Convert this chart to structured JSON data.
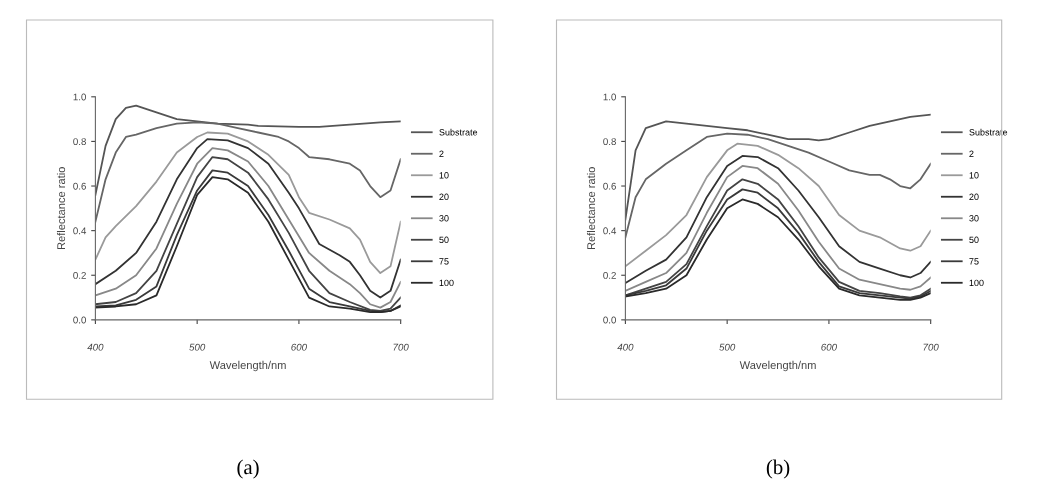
{
  "chart_data": [
    {
      "type": "line",
      "xlabel": "Wavelength/nm",
      "ylabel": "Reflectance ratio",
      "xlim": [
        400,
        700
      ],
      "ylim": [
        0,
        1
      ],
      "xticks": [
        400,
        500,
        600,
        700
      ],
      "yticks": [
        {
          "value": 0,
          "label": "0.0"
        },
        {
          "value": 0.2,
          "label": "0.2"
        },
        {
          "value": 0.4,
          "label": "0.4"
        },
        {
          "value": 0.6,
          "label": "0.6"
        },
        {
          "value": 0.8,
          "label": "0.8"
        },
        {
          "value": 1,
          "label": "1.0"
        }
      ],
      "grid": false,
      "legend": "right",
      "marker": "none",
      "line_style": "solid",
      "annotations": [
        "(a)"
      ],
      "series": [
        {
          "name": "Substrate",
          "color": "#555555",
          "x": [
            400,
            410,
            420,
            430,
            440,
            460,
            480,
            500,
            520,
            550,
            560,
            600,
            620,
            650,
            680,
            700
          ],
          "values": [
            0.56,
            0.78,
            0.9,
            0.95,
            0.96,
            0.93,
            0.9,
            0.89,
            0.88,
            0.875,
            0.87,
            0.865,
            0.865,
            0.875,
            0.885,
            0.89
          ]
        },
        {
          "name": "2",
          "color": "#666666",
          "x": [
            400,
            410,
            420,
            430,
            440,
            460,
            480,
            500,
            520,
            540,
            560,
            580,
            590,
            600,
            610,
            630,
            650,
            660,
            670,
            680,
            690,
            700
          ],
          "values": [
            0.44,
            0.63,
            0.75,
            0.82,
            0.83,
            0.86,
            0.88,
            0.885,
            0.88,
            0.86,
            0.84,
            0.82,
            0.8,
            0.77,
            0.73,
            0.72,
            0.7,
            0.67,
            0.6,
            0.55,
            0.58,
            0.72
          ]
        },
        {
          "name": "10",
          "color": "#9a9a9a",
          "x": [
            400,
            410,
            420,
            440,
            460,
            480,
            500,
            510,
            530,
            550,
            570,
            590,
            600,
            610,
            630,
            650,
            660,
            670,
            680,
            690,
            700
          ],
          "values": [
            0.27,
            0.37,
            0.42,
            0.51,
            0.62,
            0.75,
            0.82,
            0.84,
            0.835,
            0.8,
            0.74,
            0.65,
            0.55,
            0.48,
            0.45,
            0.41,
            0.36,
            0.26,
            0.21,
            0.24,
            0.44
          ]
        },
        {
          "name": "20",
          "color": "#333333",
          "x": [
            400,
            420,
            440,
            460,
            480,
            500,
            510,
            530,
            550,
            570,
            590,
            600,
            620,
            640,
            650,
            660,
            670,
            680,
            690,
            700
          ],
          "values": [
            0.16,
            0.22,
            0.3,
            0.44,
            0.63,
            0.77,
            0.81,
            0.805,
            0.77,
            0.7,
            0.57,
            0.5,
            0.34,
            0.29,
            0.26,
            0.2,
            0.13,
            0.1,
            0.13,
            0.27
          ]
        },
        {
          "name": "30",
          "color": "#888888",
          "x": [
            400,
            420,
            440,
            460,
            480,
            500,
            515,
            530,
            550,
            570,
            590,
            610,
            630,
            650,
            660,
            670,
            680,
            690,
            700
          ],
          "values": [
            0.11,
            0.14,
            0.2,
            0.32,
            0.52,
            0.7,
            0.77,
            0.76,
            0.71,
            0.6,
            0.45,
            0.3,
            0.22,
            0.16,
            0.12,
            0.07,
            0.055,
            0.08,
            0.17
          ]
        },
        {
          "name": "50",
          "color": "#444444",
          "x": [
            400,
            420,
            440,
            460,
            480,
            500,
            515,
            530,
            550,
            570,
            590,
            610,
            630,
            650,
            670,
            680,
            690,
            700
          ],
          "values": [
            0.07,
            0.08,
            0.12,
            0.22,
            0.43,
            0.64,
            0.73,
            0.72,
            0.66,
            0.54,
            0.39,
            0.22,
            0.12,
            0.08,
            0.045,
            0.04,
            0.05,
            0.1
          ]
        },
        {
          "name": "75",
          "color": "#3a3a3a",
          "x": [
            400,
            420,
            440,
            460,
            480,
            500,
            515,
            530,
            550,
            570,
            590,
            610,
            630,
            650,
            670,
            680,
            690,
            700
          ],
          "values": [
            0.06,
            0.065,
            0.09,
            0.15,
            0.38,
            0.58,
            0.67,
            0.66,
            0.6,
            0.47,
            0.31,
            0.14,
            0.08,
            0.06,
            0.04,
            0.035,
            0.04,
            0.065
          ]
        },
        {
          "name": "100",
          "color": "#2a2a2a",
          "x": [
            400,
            420,
            440,
            460,
            480,
            500,
            515,
            530,
            550,
            570,
            590,
            610,
            630,
            650,
            670,
            680,
            690,
            700
          ],
          "values": [
            0.055,
            0.06,
            0.07,
            0.11,
            0.33,
            0.56,
            0.64,
            0.63,
            0.57,
            0.44,
            0.27,
            0.1,
            0.06,
            0.05,
            0.035,
            0.035,
            0.04,
            0.06
          ]
        }
      ]
    },
    {
      "type": "line",
      "xlabel": "Wavelength/nm",
      "ylabel": "Reflectance ratio",
      "xlim": [
        400,
        700
      ],
      "ylim": [
        0,
        1
      ],
      "xticks": [
        400,
        500,
        600,
        700
      ],
      "yticks": [
        {
          "value": 0,
          "label": "0.0"
        },
        {
          "value": 0.2,
          "label": "0.2"
        },
        {
          "value": 0.4,
          "label": "0.4"
        },
        {
          "value": 0.6,
          "label": "0.6"
        },
        {
          "value": 0.8,
          "label": "0.8"
        },
        {
          "value": 1,
          "label": "1.0"
        }
      ],
      "grid": false,
      "legend": "right",
      "marker": "none",
      "line_style": "solid",
      "annotations": [
        "(b)"
      ],
      "series": [
        {
          "name": "Substrate",
          "color": "#555555",
          "x": [
            400,
            410,
            420,
            440,
            460,
            480,
            500,
            520,
            540,
            560,
            580,
            590,
            600,
            620,
            640,
            660,
            680,
            700
          ],
          "values": [
            0.45,
            0.76,
            0.86,
            0.89,
            0.88,
            0.87,
            0.86,
            0.85,
            0.83,
            0.81,
            0.81,
            0.805,
            0.81,
            0.84,
            0.87,
            0.89,
            0.91,
            0.92
          ]
        },
        {
          "name": "2",
          "color": "#666666",
          "x": [
            400,
            410,
            420,
            440,
            460,
            480,
            500,
            520,
            540,
            560,
            580,
            600,
            620,
            640,
            650,
            660,
            670,
            680,
            690,
            700
          ],
          "values": [
            0.37,
            0.55,
            0.63,
            0.7,
            0.76,
            0.82,
            0.835,
            0.83,
            0.81,
            0.78,
            0.75,
            0.71,
            0.67,
            0.65,
            0.65,
            0.63,
            0.6,
            0.59,
            0.63,
            0.7
          ]
        },
        {
          "name": "10",
          "color": "#9a9a9a",
          "x": [
            400,
            420,
            440,
            460,
            480,
            500,
            510,
            530,
            550,
            570,
            590,
            610,
            630,
            650,
            670,
            680,
            690,
            700
          ],
          "values": [
            0.24,
            0.31,
            0.38,
            0.47,
            0.64,
            0.76,
            0.79,
            0.78,
            0.74,
            0.68,
            0.6,
            0.47,
            0.4,
            0.37,
            0.32,
            0.31,
            0.33,
            0.4
          ]
        },
        {
          "name": "20",
          "color": "#333333",
          "x": [
            400,
            420,
            440,
            460,
            480,
            500,
            515,
            530,
            550,
            570,
            590,
            610,
            630,
            650,
            670,
            680,
            690,
            700
          ],
          "values": [
            0.165,
            0.22,
            0.27,
            0.37,
            0.55,
            0.69,
            0.735,
            0.73,
            0.68,
            0.58,
            0.46,
            0.33,
            0.26,
            0.23,
            0.2,
            0.19,
            0.21,
            0.26
          ]
        },
        {
          "name": "30",
          "color": "#888888",
          "x": [
            400,
            420,
            440,
            460,
            480,
            500,
            515,
            530,
            550,
            570,
            590,
            610,
            630,
            650,
            670,
            680,
            690,
            700
          ],
          "values": [
            0.13,
            0.17,
            0.21,
            0.3,
            0.48,
            0.64,
            0.69,
            0.68,
            0.61,
            0.49,
            0.35,
            0.23,
            0.18,
            0.16,
            0.14,
            0.135,
            0.15,
            0.19
          ]
        },
        {
          "name": "50",
          "color": "#444444",
          "x": [
            400,
            420,
            440,
            460,
            480,
            500,
            515,
            530,
            550,
            570,
            590,
            610,
            630,
            650,
            670,
            680,
            690,
            700
          ],
          "values": [
            0.11,
            0.14,
            0.17,
            0.25,
            0.42,
            0.58,
            0.63,
            0.61,
            0.54,
            0.42,
            0.28,
            0.17,
            0.13,
            0.12,
            0.105,
            0.1,
            0.11,
            0.14
          ]
        },
        {
          "name": "75",
          "color": "#3a3a3a",
          "x": [
            400,
            420,
            440,
            460,
            480,
            500,
            515,
            530,
            550,
            570,
            590,
            610,
            630,
            650,
            670,
            680,
            690,
            700
          ],
          "values": [
            0.11,
            0.13,
            0.155,
            0.23,
            0.4,
            0.54,
            0.585,
            0.57,
            0.5,
            0.39,
            0.26,
            0.15,
            0.12,
            0.11,
            0.1,
            0.095,
            0.105,
            0.13
          ]
        },
        {
          "name": "100",
          "color": "#2a2a2a",
          "x": [
            400,
            420,
            440,
            460,
            480,
            500,
            515,
            530,
            550,
            570,
            590,
            610,
            630,
            650,
            670,
            680,
            690,
            700
          ],
          "values": [
            0.105,
            0.12,
            0.14,
            0.2,
            0.36,
            0.5,
            0.54,
            0.52,
            0.46,
            0.36,
            0.24,
            0.14,
            0.11,
            0.1,
            0.09,
            0.09,
            0.1,
            0.12
          ]
        }
      ]
    }
  ]
}
